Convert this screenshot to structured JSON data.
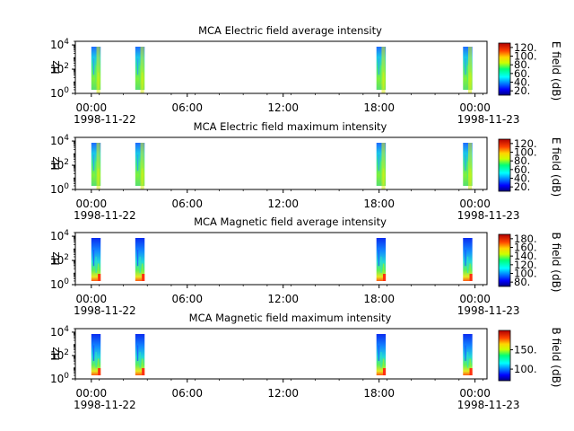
{
  "chart_data": [
    {
      "type": "heatmap",
      "title": "MCA  Electric field average intensity",
      "xlabel": "",
      "ylabel": "Hz",
      "y_scale": "log",
      "ylim": [
        1,
        20000
      ],
      "y_ticks": [
        {
          "pow": "0"
        },
        {
          "pow": "2"
        },
        {
          "pow": "4"
        }
      ],
      "x_range": [
        "1998-11-21T23:00",
        "1998-11-23T00:45"
      ],
      "x_tick_labels": [
        "00:00",
        "06:00",
        "12:00",
        "18:00",
        "00:00"
      ],
      "x_tick_dates": [
        "1998-11-22",
        "",
        "",
        "",
        "1998-11-23"
      ],
      "colorbar": {
        "label": "E field (dB)",
        "range": [
          10,
          130
        ],
        "ticks": [
          "20.",
          "40.",
          "60.",
          "80.",
          "100.",
          "120."
        ]
      },
      "passes": [
        {
          "start": "00:00",
          "end": "00:35"
        },
        {
          "start": "02:45",
          "end": "03:20"
        },
        {
          "start": "17:50",
          "end": "18:25"
        },
        {
          "start": "23:15",
          "end": "23:50"
        }
      ]
    },
    {
      "type": "heatmap",
      "title": "MCA  Electric field maximum intensity",
      "xlabel": "",
      "ylabel": "Hz",
      "y_scale": "log",
      "ylim": [
        1,
        20000
      ],
      "y_ticks": [
        {
          "pow": "0"
        },
        {
          "pow": "2"
        },
        {
          "pow": "4"
        }
      ],
      "x_range": [
        "1998-11-21T23:00",
        "1998-11-23T00:45"
      ],
      "x_tick_labels": [
        "00:00",
        "06:00",
        "12:00",
        "18:00",
        "00:00"
      ],
      "x_tick_dates": [
        "1998-11-22",
        "",
        "",
        "",
        "1998-11-23"
      ],
      "colorbar": {
        "label": "E field (dB)",
        "range": [
          10,
          130
        ],
        "ticks": [
          "20.",
          "40.",
          "60.",
          "80.",
          "100.",
          "120."
        ]
      },
      "passes": [
        {
          "start": "00:00",
          "end": "00:35"
        },
        {
          "start": "02:45",
          "end": "03:20"
        },
        {
          "start": "17:50",
          "end": "18:25"
        },
        {
          "start": "23:15",
          "end": "23:50"
        }
      ]
    },
    {
      "type": "heatmap",
      "title": "MCA  Magnetic field average intensity",
      "xlabel": "",
      "ylabel": "Hz",
      "y_scale": "log",
      "ylim": [
        1,
        20000
      ],
      "y_ticks": [
        {
          "pow": "0"
        },
        {
          "pow": "2"
        },
        {
          "pow": "4"
        }
      ],
      "x_range": [
        "1998-11-21T23:00",
        "1998-11-23T00:45"
      ],
      "x_tick_labels": [
        "00:00",
        "06:00",
        "12:00",
        "18:00",
        "00:00"
      ],
      "x_tick_dates": [
        "1998-11-22",
        "",
        "",
        "",
        "1998-11-23"
      ],
      "colorbar": {
        "label": "B field (dB)",
        "range": [
          70,
          190
        ],
        "ticks": [
          "80.",
          "100.",
          "120.",
          "140.",
          "160.",
          "180."
        ]
      },
      "passes": [
        {
          "start": "00:00",
          "end": "00:35"
        },
        {
          "start": "02:45",
          "end": "03:20"
        },
        {
          "start": "17:50",
          "end": "18:25"
        },
        {
          "start": "23:15",
          "end": "23:50"
        }
      ]
    },
    {
      "type": "heatmap",
      "title": "MCA  Magnetic field maximum intensity",
      "xlabel": "",
      "ylabel": "Hz",
      "y_scale": "log",
      "ylim": [
        1,
        20000
      ],
      "y_ticks": [
        {
          "pow": "0"
        },
        {
          "pow": "2"
        },
        {
          "pow": "4"
        }
      ],
      "x_range": [
        "1998-11-21T23:00",
        "1998-11-23T00:45"
      ],
      "x_tick_labels": [
        "00:00",
        "06:00",
        "12:00",
        "18:00",
        "00:00"
      ],
      "x_tick_dates": [
        "1998-11-22",
        "",
        "",
        "",
        "1998-11-23"
      ],
      "colorbar": {
        "label": "B field (dB)",
        "range": [
          70,
          200
        ],
        "ticks": [
          "100.",
          "150."
        ]
      },
      "passes": [
        {
          "start": "00:00",
          "end": "00:35"
        },
        {
          "start": "02:45",
          "end": "03:20"
        },
        {
          "start": "17:50",
          "end": "18:25"
        },
        {
          "start": "23:15",
          "end": "23:50"
        }
      ]
    }
  ]
}
